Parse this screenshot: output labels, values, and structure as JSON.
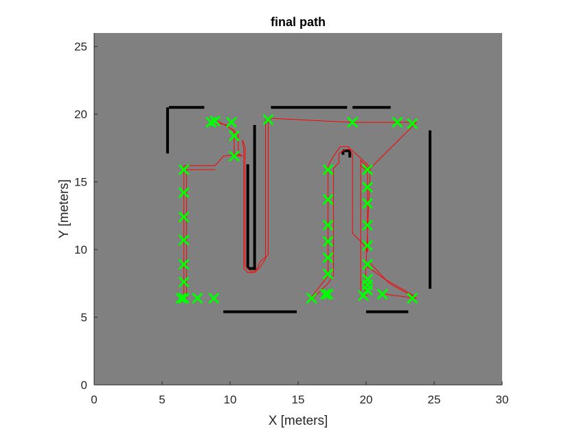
{
  "chart_data": {
    "type": "line",
    "title": "final path",
    "xlabel": "X [meters]",
    "ylabel": "Y [meters]",
    "xlim": [
      0,
      30
    ],
    "ylim": [
      0,
      26
    ],
    "xticks": [
      "0",
      "5",
      "10",
      "15",
      "20",
      "25",
      "30"
    ],
    "yticks": [
      "0",
      "5",
      "10",
      "15",
      "20",
      "25"
    ],
    "grid": false,
    "colors": {
      "background": "#808080",
      "obstacles": "#000000",
      "path": "#ff0000",
      "waypoints": "#00ff00"
    },
    "obstacles": [
      {
        "x": [
          5.5,
          8.1
        ],
        "y": [
          20.5,
          20.5
        ]
      },
      {
        "x": [
          5.4,
          5.4
        ],
        "y": [
          20.5,
          17.1
        ]
      },
      {
        "x": [
          13.0,
          18.6
        ],
        "y": [
          20.5,
          20.5
        ]
      },
      {
        "x": [
          19.0,
          21.8
        ],
        "y": [
          20.5,
          20.5
        ]
      },
      {
        "x": [
          24.7,
          24.7
        ],
        "y": [
          18.8,
          7.1
        ]
      },
      {
        "x": [
          11.8,
          11.8
        ],
        "y": [
          19.2,
          8.5
        ]
      },
      {
        "x": [
          11.3,
          11.3
        ],
        "y": [
          16.3,
          8.6
        ]
      },
      {
        "x": [
          11.3,
          11.8
        ],
        "y": [
          8.6,
          8.6
        ]
      },
      {
        "x": [
          18.3,
          18.8
        ],
        "y": [
          17.3,
          17.3
        ]
      },
      {
        "x": [
          18.3,
          18.3
        ],
        "y": [
          17.3,
          17.0
        ]
      },
      {
        "x": [
          18.8,
          18.8
        ],
        "y": [
          17.3,
          16.8
        ]
      },
      {
        "x": [
          9.5,
          14.9
        ],
        "y": [
          5.4,
          5.4
        ]
      },
      {
        "x": [
          20.0,
          23.1
        ],
        "y": [
          5.4,
          5.4
        ]
      }
    ],
    "path": {
      "x": [
        8.8,
        10.4,
        10.4,
        8.9,
        8.6,
        8.4,
        8.2,
        10.0,
        10.0,
        9.0,
        8.9,
        8.7,
        8.6,
        8.6,
        7.3,
        7.2,
        7.3,
        7.2,
        7.3,
        7.1,
        7.0,
        6.7,
        8.8,
        8.8
      ],
      "y": [
        19.5,
        19.5,
        18.4,
        18.4,
        17.4,
        17.0,
        16.9,
        16.9,
        16.0,
        16.0,
        15.5,
        15.3,
        13.2,
        11.8,
        11.6,
        10.7,
        9.5,
        8.2,
        7.8,
        7.5,
        7.2,
        6.4,
        6.4,
        6.5
      ],
      "segments": [
        {
          "x": [
            8.8,
            8.6,
            8.2,
            6.6,
            6.6,
            6.6,
            6.6,
            6.6,
            6.6,
            6.6,
            7.6,
            8.8
          ],
          "y": [
            19.6,
            19.2,
            16.9,
            16.2,
            16.0,
            14.2,
            12.4,
            10.7,
            9.0,
            7.7,
            6.4,
            6.4
          ]
        },
        {
          "x": [
            6.4,
            6.4,
            6.4
          ],
          "y": [
            6.4,
            6.4,
            6.4
          ]
        }
      ]
    },
    "path_lines": [
      {
        "x": [
          6.6,
          6.6,
          8.9,
          8.9
        ],
        "y": [
          6.2,
          16.2,
          16.2,
          16.2
        ]
      },
      {
        "x": [
          6.8,
          6.8,
          8.9,
          8.9
        ],
        "y": [
          6.4,
          15.9,
          15.9,
          15.9
        ]
      },
      {
        "x": [
          8.9,
          9.5,
          10.3,
          10.9
        ],
        "y": [
          16.2,
          16.9,
          17.0,
          16.9
        ]
      },
      {
        "x": [
          8.6,
          8.9,
          10.3,
          10.3,
          10.7
        ],
        "y": [
          19.2,
          19.6,
          18.8,
          17.0,
          17.0
        ]
      },
      {
        "x": [
          8.9,
          9.7,
          10.6,
          10.6,
          10.9
        ],
        "y": [
          19.4,
          19.2,
          18.5,
          17.1,
          16.9
        ]
      },
      {
        "x": [
          10.9,
          11.1,
          11.1,
          11.5,
          11.8,
          12.0,
          12.2,
          12.8,
          12.8,
          13.0
        ],
        "y": [
          18.1,
          17.6,
          8.8,
          8.4,
          8.4,
          8.6,
          9.1,
          9.6,
          19.4,
          19.7
        ]
      },
      {
        "x": [
          10.9,
          11.0,
          11.0,
          11.3,
          11.8,
          12.2,
          12.6,
          12.6
        ],
        "y": [
          18.1,
          17.4,
          8.6,
          8.3,
          8.3,
          8.7,
          9.3,
          19.6
        ]
      },
      {
        "x": [
          13.0,
          18.9,
          23.7
        ],
        "y": [
          19.7,
          19.4,
          19.4
        ]
      },
      {
        "x": [
          23.7,
          20.1,
          19.6
        ],
        "y": [
          19.4,
          15.8,
          16.2
        ]
      },
      {
        "x": [
          15.9,
          17.0,
          17.2,
          17.2,
          17.6,
          18.1,
          18.7,
          19.0,
          19.0,
          19.8,
          20.1,
          20.1,
          19.6,
          19.6,
          20.1
        ],
        "y": [
          6.4,
          7.8,
          8.1,
          16.2,
          16.9,
          17.6,
          17.6,
          17.0,
          11.2,
          10.4,
          9.8,
          16.1,
          16.6,
          6.8,
          6.6
        ]
      },
      {
        "x": [
          15.9,
          17.2,
          17.6,
          17.6,
          18.0,
          18.0,
          18.5,
          18.5,
          18.9,
          18.9,
          20.3,
          20.3,
          19.9,
          19.9
        ],
        "y": [
          6.2,
          7.5,
          8.1,
          16.0,
          16.4,
          17.1,
          17.4,
          17.4,
          17.4,
          17.4,
          16.1,
          15.9,
          6.6,
          6.6
        ]
      },
      {
        "x": [
          20.0,
          20.3,
          21.7,
          23.7
        ],
        "y": [
          9.0,
          9.0,
          7.5,
          6.4
        ]
      },
      {
        "x": [
          20.0,
          20.0,
          21.4,
          23.5
        ],
        "y": [
          9.0,
          8.8,
          7.8,
          6.6
        ]
      },
      {
        "x": [
          21.4,
          23.7
        ],
        "y": [
          6.7,
          6.4
        ]
      }
    ],
    "waypoints": {
      "x": [
        6.6,
        6.6,
        6.6,
        6.6,
        6.6,
        6.6,
        6.6,
        6.4,
        7.6,
        8.8,
        8.6,
        8.9,
        10.1,
        10.3,
        10.3,
        12.8,
        17.2,
        17.2,
        17.2,
        17.2,
        17.2,
        17.2,
        17.2,
        16.0,
        17.0,
        19.0,
        20.1,
        20.1,
        20.1,
        20.1,
        20.1,
        20.1,
        20.1,
        20.1,
        20.1,
        19.8,
        21.2,
        22.3,
        23.4,
        23.4
      ],
      "y": [
        15.9,
        14.2,
        12.4,
        10.7,
        8.9,
        7.6,
        6.4,
        6.4,
        6.4,
        6.4,
        19.4,
        19.5,
        19.4,
        18.4,
        16.9,
        19.6,
        15.9,
        13.7,
        11.8,
        10.6,
        9.4,
        8.2,
        6.7,
        6.4,
        6.7,
        19.4,
        15.9,
        14.6,
        13.4,
        11.8,
        10.3,
        8.9,
        7.8,
        7.4,
        7.0,
        6.6,
        6.7,
        19.4,
        19.3,
        6.4
      ]
    }
  }
}
